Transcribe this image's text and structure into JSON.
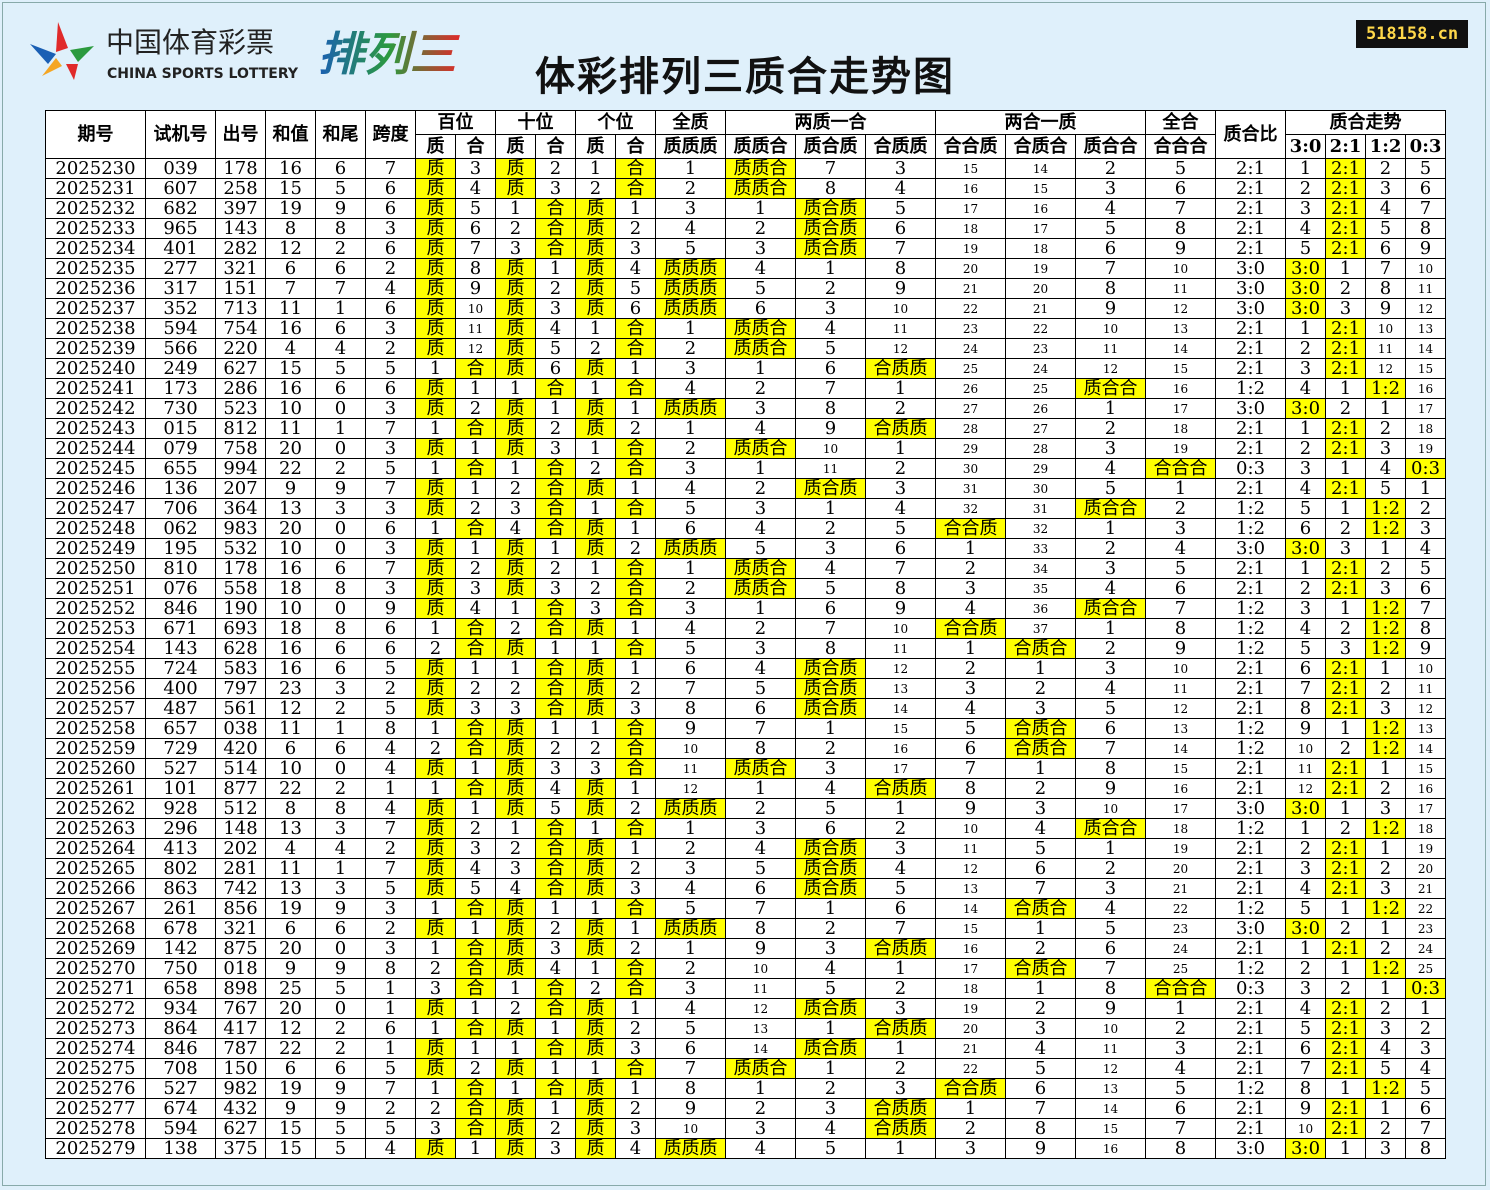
{
  "logo": {
    "cn": "中国体育彩票",
    "en": "CHINA SPORTS LOTTERY",
    "product": "排列三"
  },
  "title": "体彩排列三质合走势图",
  "badge": "518158.cn",
  "highlight_color": "#ffff00",
  "header": {
    "top": [
      "期号",
      "试机号",
      "出号",
      "和值",
      "和尾",
      "跨度",
      "百位",
      "十位",
      "个位",
      "全质",
      "两质一合",
      "两合一质",
      "全合",
      "质合比",
      "质合走势"
    ],
    "sub": [
      "质",
      "合",
      "质",
      "合",
      "质",
      "合",
      "质质质",
      "质质合",
      "质合质",
      "合质质",
      "合合质",
      "合质合",
      "质合合",
      "合合合",
      "3:0",
      "2:1",
      "1:2",
      "0:3"
    ]
  },
  "rows": [
    [
      "2025230",
      "039",
      "178",
      "16",
      "6",
      "7",
      "质",
      "3",
      "质",
      "2",
      "1",
      "合",
      "1",
      "质质合",
      "7",
      "3",
      "15",
      "14",
      "2",
      "5",
      "2:1",
      "1",
      "2:1",
      "2",
      "5"
    ],
    [
      "2025231",
      "607",
      "258",
      "15",
      "5",
      "6",
      "质",
      "4",
      "质",
      "3",
      "2",
      "合",
      "2",
      "质质合",
      "8",
      "4",
      "16",
      "15",
      "3",
      "6",
      "2:1",
      "2",
      "2:1",
      "3",
      "6"
    ],
    [
      "2025232",
      "682",
      "397",
      "19",
      "9",
      "6",
      "质",
      "5",
      "1",
      "合",
      "质",
      "1",
      "3",
      "1",
      "质合质",
      "5",
      "17",
      "16",
      "4",
      "7",
      "2:1",
      "3",
      "2:1",
      "4",
      "7"
    ],
    [
      "2025233",
      "965",
      "143",
      "8",
      "8",
      "3",
      "质",
      "6",
      "2",
      "合",
      "质",
      "2",
      "4",
      "2",
      "质合质",
      "6",
      "18",
      "17",
      "5",
      "8",
      "2:1",
      "4",
      "2:1",
      "5",
      "8"
    ],
    [
      "2025234",
      "401",
      "282",
      "12",
      "2",
      "6",
      "质",
      "7",
      "3",
      "合",
      "质",
      "3",
      "5",
      "3",
      "质合质",
      "7",
      "19",
      "18",
      "6",
      "9",
      "2:1",
      "5",
      "2:1",
      "6",
      "9"
    ],
    [
      "2025235",
      "277",
      "321",
      "6",
      "6",
      "2",
      "质",
      "8",
      "质",
      "1",
      "质",
      "4",
      "质质质",
      "4",
      "1",
      "8",
      "20",
      "19",
      "7",
      "10",
      "3:0",
      "3:0",
      "1",
      "7",
      "10"
    ],
    [
      "2025236",
      "317",
      "151",
      "7",
      "7",
      "4",
      "质",
      "9",
      "质",
      "2",
      "质",
      "5",
      "质质质",
      "5",
      "2",
      "9",
      "21",
      "20",
      "8",
      "11",
      "3:0",
      "3:0",
      "2",
      "8",
      "11"
    ],
    [
      "2025237",
      "352",
      "713",
      "11",
      "1",
      "6",
      "质",
      "10",
      "质",
      "3",
      "质",
      "6",
      "质质质",
      "6",
      "3",
      "10",
      "22",
      "21",
      "9",
      "12",
      "3:0",
      "3:0",
      "3",
      "9",
      "12"
    ],
    [
      "2025238",
      "594",
      "754",
      "16",
      "6",
      "3",
      "质",
      "11",
      "质",
      "4",
      "1",
      "合",
      "1",
      "质质合",
      "4",
      "11",
      "23",
      "22",
      "10",
      "13",
      "2:1",
      "1",
      "2:1",
      "10",
      "13"
    ],
    [
      "2025239",
      "566",
      "220",
      "4",
      "4",
      "2",
      "质",
      "12",
      "质",
      "5",
      "2",
      "合",
      "2",
      "质质合",
      "5",
      "12",
      "24",
      "23",
      "11",
      "14",
      "2:1",
      "2",
      "2:1",
      "11",
      "14"
    ],
    [
      "2025240",
      "249",
      "627",
      "15",
      "5",
      "5",
      "1",
      "合",
      "质",
      "6",
      "质",
      "1",
      "3",
      "1",
      "6",
      "合质质",
      "25",
      "24",
      "12",
      "15",
      "2:1",
      "3",
      "2:1",
      "12",
      "15"
    ],
    [
      "2025241",
      "173",
      "286",
      "16",
      "6",
      "6",
      "质",
      "1",
      "1",
      "合",
      "1",
      "合",
      "4",
      "2",
      "7",
      "1",
      "26",
      "25",
      "质合合",
      "16",
      "1:2",
      "4",
      "1",
      "1:2",
      "16"
    ],
    [
      "2025242",
      "730",
      "523",
      "10",
      "0",
      "3",
      "质",
      "2",
      "质",
      "1",
      "质",
      "1",
      "质质质",
      "3",
      "8",
      "2",
      "27",
      "26",
      "1",
      "17",
      "3:0",
      "3:0",
      "2",
      "1",
      "17"
    ],
    [
      "2025243",
      "015",
      "812",
      "11",
      "1",
      "7",
      "1",
      "合",
      "质",
      "2",
      "质",
      "2",
      "1",
      "4",
      "9",
      "合质质",
      "28",
      "27",
      "2",
      "18",
      "2:1",
      "1",
      "2:1",
      "2",
      "18"
    ],
    [
      "2025244",
      "079",
      "758",
      "20",
      "0",
      "3",
      "质",
      "1",
      "质",
      "3",
      "1",
      "合",
      "2",
      "质质合",
      "10",
      "1",
      "29",
      "28",
      "3",
      "19",
      "2:1",
      "2",
      "2:1",
      "3",
      "19"
    ],
    [
      "2025245",
      "655",
      "994",
      "22",
      "2",
      "5",
      "1",
      "合",
      "1",
      "合",
      "2",
      "合",
      "3",
      "1",
      "11",
      "2",
      "30",
      "29",
      "4",
      "合合合",
      "0:3",
      "3",
      "1",
      "4",
      "0:3"
    ],
    [
      "2025246",
      "136",
      "207",
      "9",
      "9",
      "7",
      "质",
      "1",
      "2",
      "合",
      "质",
      "1",
      "4",
      "2",
      "质合质",
      "3",
      "31",
      "30",
      "5",
      "1",
      "2:1",
      "4",
      "2:1",
      "5",
      "1"
    ],
    [
      "2025247",
      "706",
      "364",
      "13",
      "3",
      "3",
      "质",
      "2",
      "3",
      "合",
      "1",
      "合",
      "5",
      "3",
      "1",
      "4",
      "32",
      "31",
      "质合合",
      "2",
      "1:2",
      "5",
      "1",
      "1:2",
      "2"
    ],
    [
      "2025248",
      "062",
      "983",
      "20",
      "0",
      "6",
      "1",
      "合",
      "4",
      "合",
      "质",
      "1",
      "6",
      "4",
      "2",
      "5",
      "合合质",
      "32",
      "1",
      "3",
      "1:2",
      "6",
      "2",
      "1:2",
      "3"
    ],
    [
      "2025249",
      "195",
      "532",
      "10",
      "0",
      "3",
      "质",
      "1",
      "质",
      "1",
      "质",
      "2",
      "质质质",
      "5",
      "3",
      "6",
      "1",
      "33",
      "2",
      "4",
      "3:0",
      "3:0",
      "3",
      "1",
      "4"
    ],
    [
      "2025250",
      "810",
      "178",
      "16",
      "6",
      "7",
      "质",
      "2",
      "质",
      "2",
      "1",
      "合",
      "1",
      "质质合",
      "4",
      "7",
      "2",
      "34",
      "3",
      "5",
      "2:1",
      "1",
      "2:1",
      "2",
      "5"
    ],
    [
      "2025251",
      "076",
      "558",
      "18",
      "8",
      "3",
      "质",
      "3",
      "质",
      "3",
      "2",
      "合",
      "2",
      "质质合",
      "5",
      "8",
      "3",
      "35",
      "4",
      "6",
      "2:1",
      "2",
      "2:1",
      "3",
      "6"
    ],
    [
      "2025252",
      "846",
      "190",
      "10",
      "0",
      "9",
      "质",
      "4",
      "1",
      "合",
      "3",
      "合",
      "3",
      "1",
      "6",
      "9",
      "4",
      "36",
      "质合合",
      "7",
      "1:2",
      "3",
      "1",
      "1:2",
      "7"
    ],
    [
      "2025253",
      "671",
      "693",
      "18",
      "8",
      "6",
      "1",
      "合",
      "2",
      "合",
      "质",
      "1",
      "4",
      "2",
      "7",
      "10",
      "合合质",
      "37",
      "1",
      "8",
      "1:2",
      "4",
      "2",
      "1:2",
      "8"
    ],
    [
      "2025254",
      "143",
      "628",
      "16",
      "6",
      "6",
      "2",
      "合",
      "质",
      "1",
      "1",
      "合",
      "5",
      "3",
      "8",
      "11",
      "1",
      "合质合",
      "2",
      "9",
      "1:2",
      "5",
      "3",
      "1:2",
      "9"
    ],
    [
      "2025255",
      "724",
      "583",
      "16",
      "6",
      "5",
      "质",
      "1",
      "1",
      "合",
      "质",
      "1",
      "6",
      "4",
      "质合质",
      "12",
      "2",
      "1",
      "3",
      "10",
      "2:1",
      "6",
      "2:1",
      "1",
      "10"
    ],
    [
      "2025256",
      "400",
      "797",
      "23",
      "3",
      "2",
      "质",
      "2",
      "2",
      "合",
      "质",
      "2",
      "7",
      "5",
      "质合质",
      "13",
      "3",
      "2",
      "4",
      "11",
      "2:1",
      "7",
      "2:1",
      "2",
      "11"
    ],
    [
      "2025257",
      "487",
      "561",
      "12",
      "2",
      "5",
      "质",
      "3",
      "3",
      "合",
      "质",
      "3",
      "8",
      "6",
      "质合质",
      "14",
      "4",
      "3",
      "5",
      "12",
      "2:1",
      "8",
      "2:1",
      "3",
      "12"
    ],
    [
      "2025258",
      "657",
      "038",
      "11",
      "1",
      "8",
      "1",
      "合",
      "质",
      "1",
      "1",
      "合",
      "9",
      "7",
      "1",
      "15",
      "5",
      "合质合",
      "6",
      "13",
      "1:2",
      "9",
      "1",
      "1:2",
      "13"
    ],
    [
      "2025259",
      "729",
      "420",
      "6",
      "6",
      "4",
      "2",
      "合",
      "质",
      "2",
      "2",
      "合",
      "10",
      "8",
      "2",
      "16",
      "6",
      "合质合",
      "7",
      "14",
      "1:2",
      "10",
      "2",
      "1:2",
      "14"
    ],
    [
      "2025260",
      "527",
      "514",
      "10",
      "0",
      "4",
      "质",
      "1",
      "质",
      "3",
      "3",
      "合",
      "11",
      "质质合",
      "3",
      "17",
      "7",
      "1",
      "8",
      "15",
      "2:1",
      "11",
      "2:1",
      "1",
      "15"
    ],
    [
      "2025261",
      "101",
      "877",
      "22",
      "2",
      "1",
      "1",
      "合",
      "质",
      "4",
      "质",
      "1",
      "12",
      "1",
      "4",
      "合质质",
      "8",
      "2",
      "9",
      "16",
      "2:1",
      "12",
      "2:1",
      "2",
      "16"
    ],
    [
      "2025262",
      "928",
      "512",
      "8",
      "8",
      "4",
      "质",
      "1",
      "质",
      "5",
      "质",
      "2",
      "质质质",
      "2",
      "5",
      "1",
      "9",
      "3",
      "10",
      "17",
      "3:0",
      "3:0",
      "1",
      "3",
      "17"
    ],
    [
      "2025263",
      "296",
      "148",
      "13",
      "3",
      "7",
      "质",
      "2",
      "1",
      "合",
      "1",
      "合",
      "1",
      "3",
      "6",
      "2",
      "10",
      "4",
      "质合合",
      "18",
      "1:2",
      "1",
      "2",
      "1:2",
      "18"
    ],
    [
      "2025264",
      "413",
      "202",
      "4",
      "4",
      "2",
      "质",
      "3",
      "2",
      "合",
      "质",
      "1",
      "2",
      "4",
      "质合质",
      "3",
      "11",
      "5",
      "1",
      "19",
      "2:1",
      "2",
      "2:1",
      "1",
      "19"
    ],
    [
      "2025265",
      "802",
      "281",
      "11",
      "1",
      "7",
      "质",
      "4",
      "3",
      "合",
      "质",
      "2",
      "3",
      "5",
      "质合质",
      "4",
      "12",
      "6",
      "2",
      "20",
      "2:1",
      "3",
      "2:1",
      "2",
      "20"
    ],
    [
      "2025266",
      "863",
      "742",
      "13",
      "3",
      "5",
      "质",
      "5",
      "4",
      "合",
      "质",
      "3",
      "4",
      "6",
      "质合质",
      "5",
      "13",
      "7",
      "3",
      "21",
      "2:1",
      "4",
      "2:1",
      "3",
      "21"
    ],
    [
      "2025267",
      "261",
      "856",
      "19",
      "9",
      "3",
      "1",
      "合",
      "质",
      "1",
      "1",
      "合",
      "5",
      "7",
      "1",
      "6",
      "14",
      "合质合",
      "4",
      "22",
      "1:2",
      "5",
      "1",
      "1:2",
      "22"
    ],
    [
      "2025268",
      "678",
      "321",
      "6",
      "6",
      "2",
      "质",
      "1",
      "质",
      "2",
      "质",
      "1",
      "质质质",
      "8",
      "2",
      "7",
      "15",
      "1",
      "5",
      "23",
      "3:0",
      "3:0",
      "2",
      "1",
      "23"
    ],
    [
      "2025269",
      "142",
      "875",
      "20",
      "0",
      "3",
      "1",
      "合",
      "质",
      "3",
      "质",
      "2",
      "1",
      "9",
      "3",
      "合质质",
      "16",
      "2",
      "6",
      "24",
      "2:1",
      "1",
      "2:1",
      "2",
      "24"
    ],
    [
      "2025270",
      "750",
      "018",
      "9",
      "9",
      "8",
      "2",
      "合",
      "质",
      "4",
      "1",
      "合",
      "2",
      "10",
      "4",
      "1",
      "17",
      "合质合",
      "7",
      "25",
      "1:2",
      "2",
      "1",
      "1:2",
      "25"
    ],
    [
      "2025271",
      "658",
      "898",
      "25",
      "5",
      "1",
      "3",
      "合",
      "1",
      "合",
      "2",
      "合",
      "3",
      "11",
      "5",
      "2",
      "18",
      "1",
      "8",
      "合合合",
      "0:3",
      "3",
      "2",
      "1",
      "0:3"
    ],
    [
      "2025272",
      "934",
      "767",
      "20",
      "0",
      "1",
      "质",
      "1",
      "2",
      "合",
      "质",
      "1",
      "4",
      "12",
      "质合质",
      "3",
      "19",
      "2",
      "9",
      "1",
      "2:1",
      "4",
      "2:1",
      "2",
      "1"
    ],
    [
      "2025273",
      "864",
      "417",
      "12",
      "2",
      "6",
      "1",
      "合",
      "质",
      "1",
      "质",
      "2",
      "5",
      "13",
      "1",
      "合质质",
      "20",
      "3",
      "10",
      "2",
      "2:1",
      "5",
      "2:1",
      "3",
      "2"
    ],
    [
      "2025274",
      "846",
      "787",
      "22",
      "2",
      "1",
      "质",
      "1",
      "1",
      "合",
      "质",
      "3",
      "6",
      "14",
      "质合质",
      "1",
      "21",
      "4",
      "11",
      "3",
      "2:1",
      "6",
      "2:1",
      "4",
      "3"
    ],
    [
      "2025275",
      "708",
      "150",
      "6",
      "6",
      "5",
      "质",
      "2",
      "质",
      "1",
      "1",
      "合",
      "7",
      "质质合",
      "1",
      "2",
      "22",
      "5",
      "12",
      "4",
      "2:1",
      "7",
      "2:1",
      "5",
      "4"
    ],
    [
      "2025276",
      "527",
      "982",
      "19",
      "9",
      "7",
      "1",
      "合",
      "1",
      "合",
      "质",
      "1",
      "8",
      "1",
      "2",
      "3",
      "合合质",
      "6",
      "13",
      "5",
      "1:2",
      "8",
      "1",
      "1:2",
      "5"
    ],
    [
      "2025277",
      "674",
      "432",
      "9",
      "9",
      "2",
      "2",
      "合",
      "质",
      "1",
      "质",
      "2",
      "9",
      "2",
      "3",
      "合质质",
      "1",
      "7",
      "14",
      "6",
      "2:1",
      "9",
      "2:1",
      "1",
      "6"
    ],
    [
      "2025278",
      "594",
      "627",
      "15",
      "5",
      "5",
      "3",
      "合",
      "质",
      "2",
      "质",
      "3",
      "10",
      "3",
      "4",
      "合质质",
      "2",
      "8",
      "15",
      "7",
      "2:1",
      "10",
      "2:1",
      "2",
      "7"
    ],
    [
      "2025279",
      "138",
      "375",
      "15",
      "5",
      "4",
      "质",
      "1",
      "质",
      "3",
      "质",
      "4",
      "质质质",
      "4",
      "5",
      "1",
      "3",
      "9",
      "16",
      "8",
      "3:0",
      "3:0",
      "1",
      "3",
      "8"
    ]
  ]
}
